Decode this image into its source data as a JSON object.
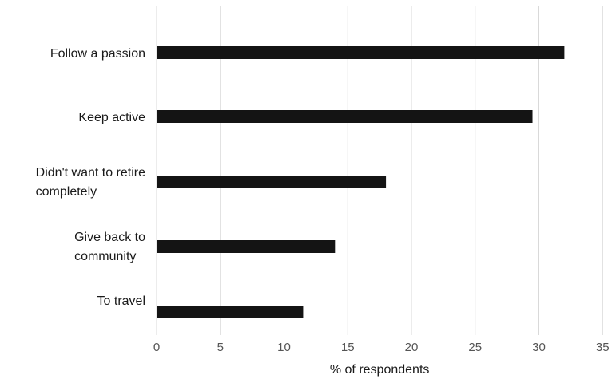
{
  "chart_data": {
    "type": "bar",
    "orientation": "horizontal",
    "categories": [
      [
        "Follow a passion"
      ],
      [
        "Keep active"
      ],
      [
        "Didn't want to retire",
        "completely"
      ],
      [
        "Give back to",
        "community"
      ],
      [
        "To travel"
      ]
    ],
    "values": [
      32,
      29.5,
      18,
      14,
      11.5
    ],
    "xlabel": "% of respondents",
    "ylabel": "",
    "title": "",
    "xlim": [
      0,
      35
    ],
    "xticks": [
      "0",
      "5",
      "10",
      "15",
      "20",
      "25",
      "30",
      "35"
    ],
    "grid": true,
    "bar_color": "#141414",
    "grid_color": "#d9d9d9"
  }
}
